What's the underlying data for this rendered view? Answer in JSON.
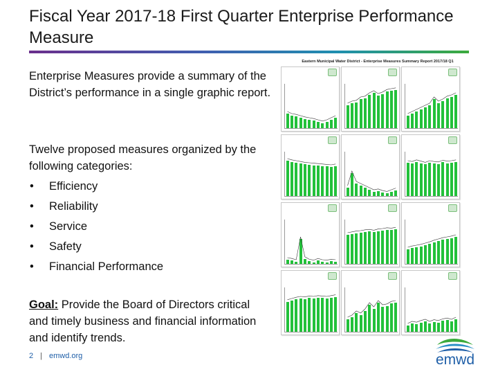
{
  "slide": {
    "title": "Fiscal Year 2017-18 First Quarter Enterprise Performance Measure",
    "intro": "Enterprise Measures provide a summary of the District’s performance in a single graphic report.",
    "categories_intro": "Twelve proposed measures organized by the following categories:",
    "categories": [
      "Efficiency",
      "Reliability",
      "Service",
      "Safety",
      "Financial Performance"
    ],
    "goal_label": "Goal:",
    "goal_text": " Provide the Board of Directors critical and timely business and financial information and identify trends.",
    "page_number": "2",
    "separator": "|",
    "website": "emwd.org"
  },
  "report_thumbnail": {
    "title": "Eastern Municipal Water District - Enterprise Measures Summary Report 2017/18 Q1"
  },
  "logo": {
    "text": "emwd",
    "colors": [
      "#3caa3c",
      "#2a8fc7",
      "#1f5fa8"
    ]
  },
  "colors": {
    "title_rule_start": "#6a2f8c",
    "title_rule_end": "#3caa3c",
    "bar_green": "#22c13a",
    "line_color": "#333333"
  }
}
